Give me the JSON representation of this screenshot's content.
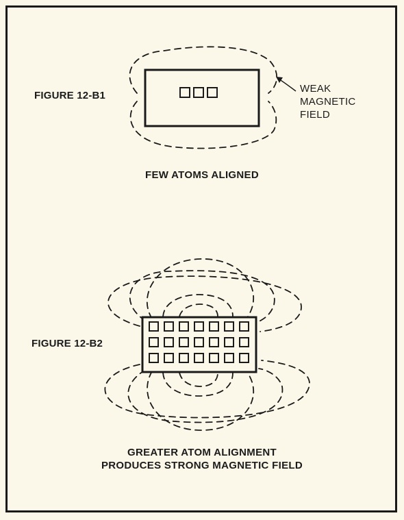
{
  "figure1": {
    "label": "FIGURE 12-B1",
    "annotation": [
      "WEAK",
      "MAGNETIC",
      "FIELD"
    ],
    "caption": "FEW ATOMS ALIGNED",
    "atoms": {
      "rows": 1,
      "cols": 3
    }
  },
  "figure2": {
    "label": "FIGURE 12-B2",
    "caption": [
      "GREATER ATOM ALIGNMENT",
      "PRODUCES STRONG MAGNETIC FIELD"
    ],
    "atoms": {
      "rows": 3,
      "cols": 7
    }
  },
  "colors": {
    "background": "#fbf8ea",
    "ink": "#1a1a1a"
  }
}
